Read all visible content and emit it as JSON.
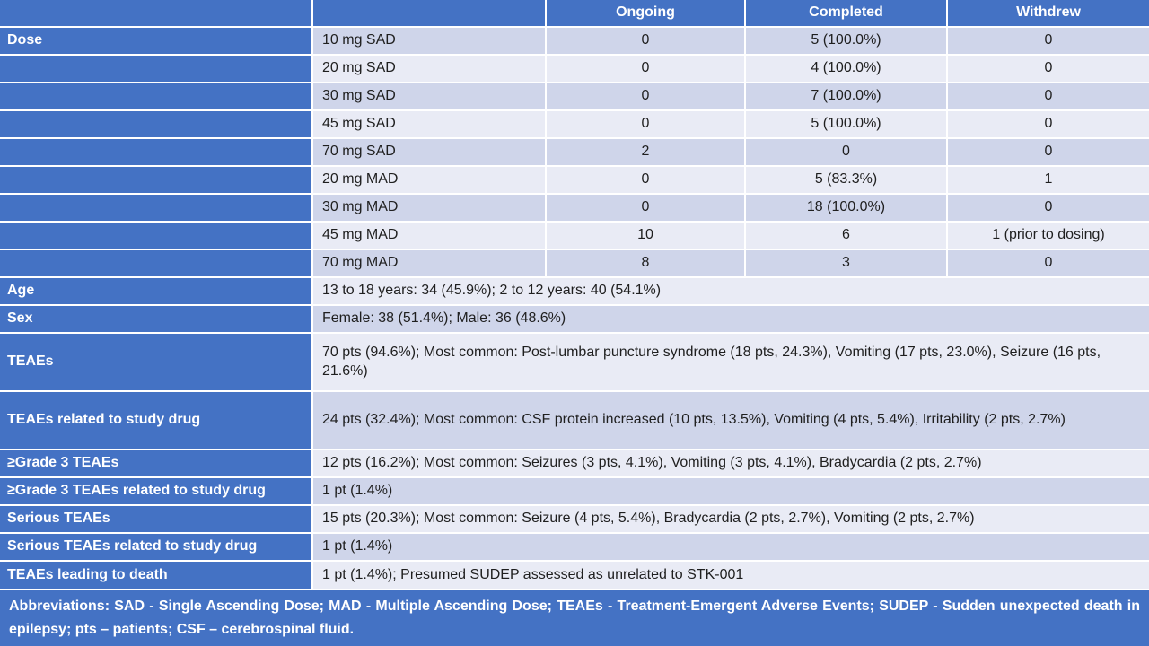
{
  "colors": {
    "accent_blue": "#4472C4",
    "band_dark": "#CFD5EA",
    "band_light": "#E9EBF5",
    "grid_white": "#FFFFFF",
    "label_text": "#FFFFFF",
    "cell_text": "#1F1F1F"
  },
  "table": {
    "header": {
      "columns": [
        "",
        "",
        "Ongoing",
        "Completed",
        "Withdrew"
      ]
    },
    "dose_rows": [
      {
        "label": "Dose",
        "dose": "10 mg SAD",
        "ongoing": "0",
        "completed": "5 (100.0%)",
        "withdrew": "0"
      },
      {
        "label": "",
        "dose": "20 mg SAD",
        "ongoing": "0",
        "completed": "4 (100.0%)",
        "withdrew": "0"
      },
      {
        "label": "",
        "dose": "30 mg SAD",
        "ongoing": "0",
        "completed": "7 (100.0%)",
        "withdrew": "0"
      },
      {
        "label": "",
        "dose": "45 mg SAD",
        "ongoing": "0",
        "completed": "5 (100.0%)",
        "withdrew": "0"
      },
      {
        "label": "",
        "dose": "70 mg SAD",
        "ongoing": "2",
        "completed": "0",
        "withdrew": "0"
      },
      {
        "label": "",
        "dose": "20 mg MAD",
        "ongoing": "0",
        "completed": "5 (83.3%)",
        "withdrew": "1"
      },
      {
        "label": "",
        "dose": "30 mg MAD",
        "ongoing": "0",
        "completed": "18 (100.0%)",
        "withdrew": "0"
      },
      {
        "label": "",
        "dose": "45 mg MAD",
        "ongoing": "10",
        "completed": "6",
        "withdrew": "1 (prior to dosing)"
      },
      {
        "label": "",
        "dose": "70 mg MAD",
        "ongoing": "8",
        "completed": "3",
        "withdrew": "0"
      }
    ],
    "summary_rows": [
      {
        "label": "Age",
        "value": "13 to 18 years: 34 (45.9%); 2 to 12 years: 40 (54.1%)",
        "tall": false
      },
      {
        "label": "Sex",
        "value": "Female: 38 (51.4%); Male: 36 (48.6%)",
        "tall": false
      },
      {
        "label": "TEAEs",
        "value": "70 pts (94.6%); Most common: Post-lumbar puncture syndrome (18 pts, 24.3%), Vomiting (17 pts, 23.0%), Seizure (16 pts, 21.6%)",
        "tall": true
      },
      {
        "label": "TEAEs related to study drug",
        "value": "24 pts (32.4%); Most common: CSF protein increased (10 pts, 13.5%), Vomiting (4 pts, 5.4%), Irritability (2 pts, 2.7%)",
        "tall": true
      },
      {
        "label": "≥Grade 3 TEAEs",
        "value": "12 pts (16.2%); Most common: Seizures (3 pts, 4.1%), Vomiting (3 pts, 4.1%), Bradycardia (2 pts, 2.7%)",
        "tall": false
      },
      {
        "label": "≥Grade 3 TEAEs related to study drug",
        "value": "1 pt (1.4%)",
        "tall": false
      },
      {
        "label": "Serious TEAEs",
        "value": "15 pts (20.3%); Most common: Seizure (4 pts, 5.4%), Bradycardia (2 pts, 2.7%), Vomiting (2 pts, 2.7%)",
        "tall": false
      },
      {
        "label": "Serious TEAEs related to study drug",
        "value": "1 pt (1.4%)",
        "tall": false
      },
      {
        "label": "TEAEs leading to death",
        "value": "1 pt (1.4%); Presumed SUDEP assessed as unrelated to STK-001",
        "tall": false
      }
    ],
    "footer": {
      "text": "Abbreviations: SAD - Single Ascending Dose; MAD - Multiple Ascending Dose; TEAEs - Treatment-Emergent Adverse Events; SUDEP - Sudden unexpected death in epilepsy; pts – patients; CSF – cerebrospinal fluid."
    }
  }
}
